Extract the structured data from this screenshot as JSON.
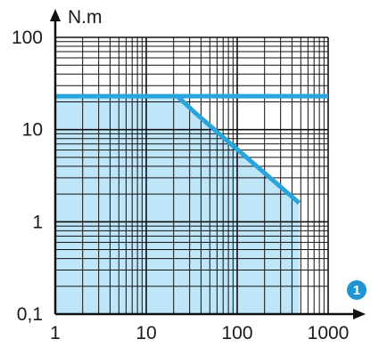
{
  "chart_data": {
    "type": "area",
    "x_scale": "log",
    "y_scale": "log",
    "xlim": [
      1,
      1000
    ],
    "ylim": [
      0.1,
      100
    ],
    "x_tick_labels": [
      "1",
      "10",
      "100",
      "1000"
    ],
    "x_tick_values": [
      1,
      10,
      100,
      1000
    ],
    "y_tick_labels": [
      "0,1",
      "1",
      "10",
      "100"
    ],
    "y_tick_values": [
      0.1,
      1,
      10,
      100
    ],
    "ylabel": "N.m",
    "axis_badge": "1",
    "grid": true,
    "series": [
      {
        "type": "area",
        "x": [
          1,
          22,
          480
        ],
        "y": [
          23,
          23,
          1.6
        ]
      },
      {
        "type": "line",
        "x": [
          1,
          22,
          35,
          480
        ],
        "y": [
          23,
          23,
          15,
          1.6
        ]
      },
      {
        "type": "line",
        "x": [
          22,
          1000
        ],
        "y": [
          23,
          23
        ]
      }
    ],
    "colors": {
      "fill": "#bfe6f8",
      "line": "#2aa5dc",
      "grid": "#111111",
      "axis": "#111111",
      "badge": "#1f94d1"
    }
  }
}
